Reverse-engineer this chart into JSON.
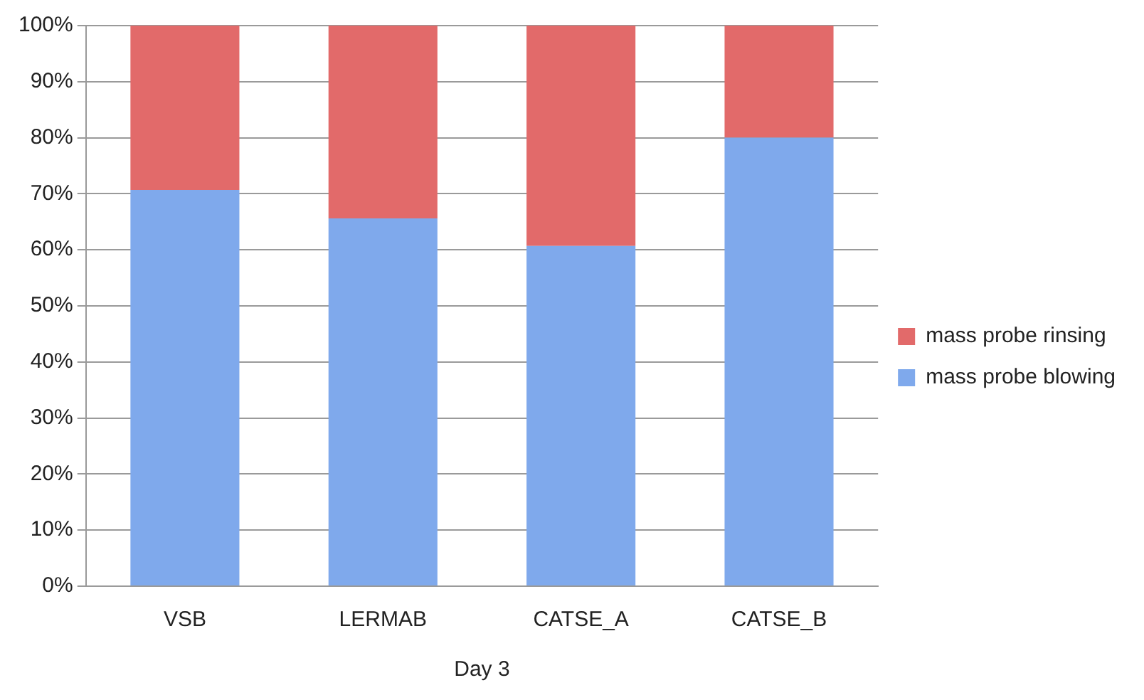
{
  "chart_data": {
    "type": "bar",
    "stacked": true,
    "categories": [
      "VSB",
      "LERMAB",
      "CATSE_A",
      "CATSE_B"
    ],
    "series": [
      {
        "name": "mass probe blowing",
        "color": "#7fa9ec",
        "values": [
          70.7,
          65.6,
          60.7,
          80
        ]
      },
      {
        "name": "mass probe rinsing",
        "color": "#e26a6a",
        "values": [
          29.3,
          34.4,
          39.3,
          20
        ]
      }
    ],
    "xlabel": "Day 3",
    "ylim": [
      0,
      100
    ],
    "yticks": [
      {
        "value": 0,
        "label": "0%"
      },
      {
        "value": 10,
        "label": "10%"
      },
      {
        "value": 20,
        "label": "20%"
      },
      {
        "value": 30,
        "label": "30%"
      },
      {
        "value": 40,
        "label": "40%"
      },
      {
        "value": 50,
        "label": "50%"
      },
      {
        "value": 60,
        "label": "60%"
      },
      {
        "value": 70,
        "label": "70%"
      },
      {
        "value": 80,
        "label": "80%"
      },
      {
        "value": 90,
        "label": "90%"
      },
      {
        "value": 100,
        "label": "100%"
      }
    ],
    "grid": "y",
    "legend": "right"
  }
}
